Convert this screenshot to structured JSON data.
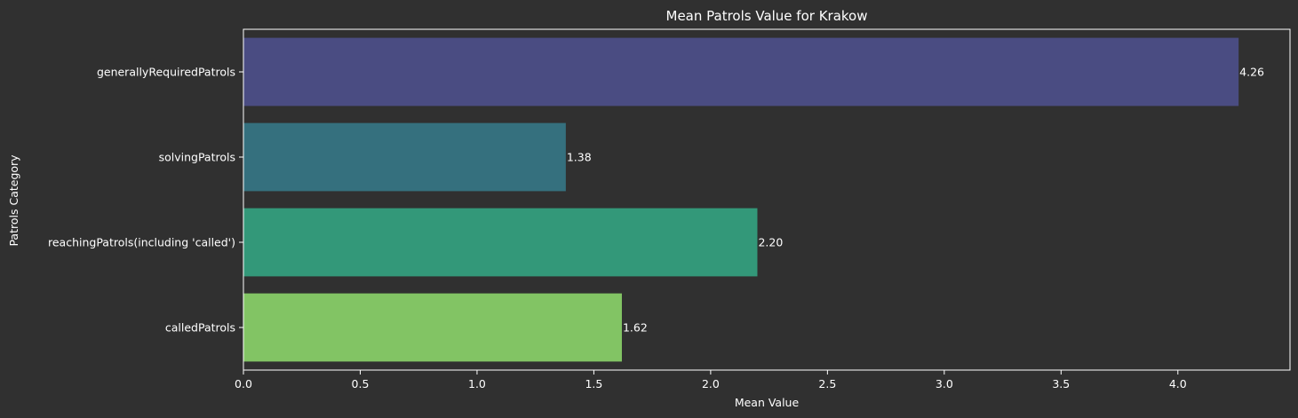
{
  "colors": {
    "background": "#303030",
    "axis": "#ffffff",
    "text": "#ffffff"
  },
  "chart_data": {
    "type": "bar",
    "orientation": "horizontal",
    "title": "Mean Patrols Value for Krakow",
    "xlabel": "Mean Value",
    "ylabel": "Patrols Category",
    "categories": [
      "generallyRequiredPatrols",
      "solvingPatrols",
      "reachingPatrols(including 'called')",
      "calledPatrols"
    ],
    "values": [
      4.26,
      1.38,
      2.2,
      1.62
    ],
    "data_labels": [
      "4.26",
      "1.38",
      "2.20",
      "1.62"
    ],
    "bar_colors": [
      "#4a4c82",
      "#35707e",
      "#339879",
      "#82c464"
    ],
    "xlim": [
      0,
      4.48
    ],
    "xticks": [
      0.0,
      0.5,
      1.0,
      1.5,
      2.0,
      2.5,
      3.0,
      3.5,
      4.0
    ],
    "xtick_labels": [
      "0.0",
      "0.5",
      "1.0",
      "1.5",
      "2.0",
      "2.5",
      "3.0",
      "3.5",
      "4.0"
    ],
    "grid": false,
    "legend": "none"
  }
}
